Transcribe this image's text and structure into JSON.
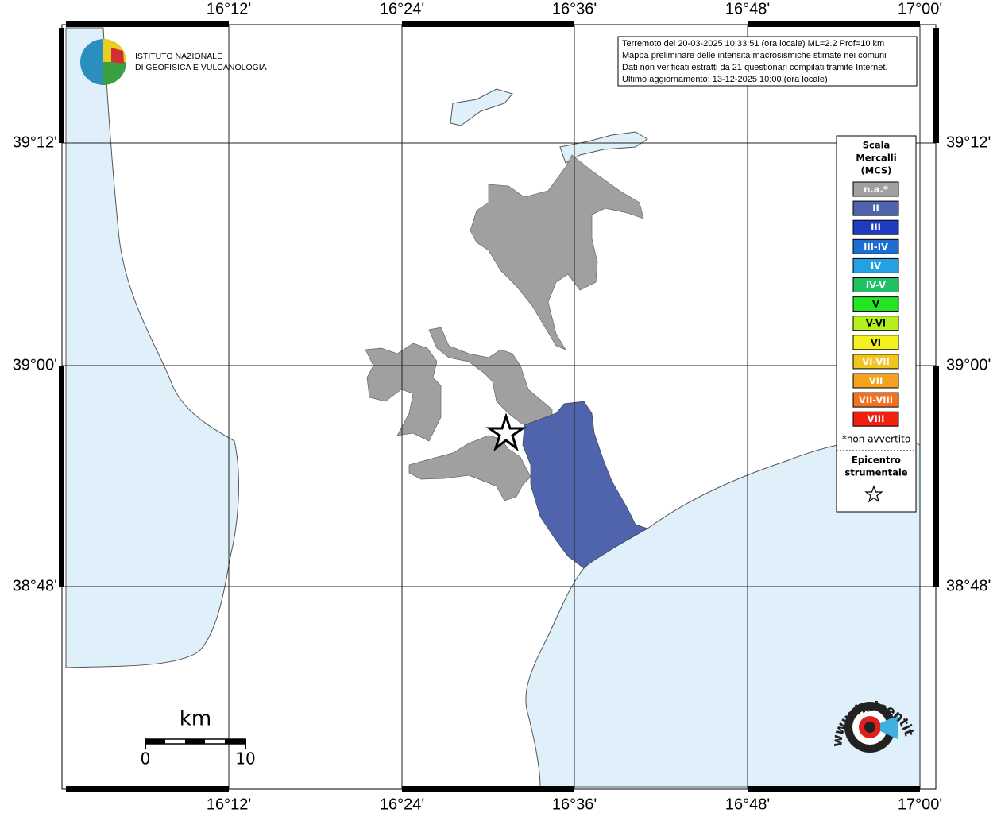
{
  "map": {
    "lon_labels": [
      "16°12'",
      "16°24'",
      "16°36'",
      "16°48'",
      "17°00'"
    ],
    "lat_labels": [
      "39°12'",
      "39°00'",
      "38°48'"
    ]
  },
  "info": {
    "lines": [
      "Terremoto del 20-03-2025 10:33:51 (ora locale) ML=2.2 Prof=10 km",
      "Mappa preliminare delle intensità macrosismiche stimate nei comuni",
      "Dati non verificati estratti da 21 questionari compilati tramite Internet.",
      "Ultimo aggiornamento: 13-12-2025 10:00 (ora locale)"
    ]
  },
  "logo": {
    "line1": "ISTITUTO NAZIONALE",
    "line2": "DI GEOFISICA E VULCANOLOGIA"
  },
  "legend": {
    "title": [
      "Scala",
      "Mercalli",
      "(MCS)"
    ],
    "items": [
      {
        "label": "n.a.*",
        "color": "#a0a0a0"
      },
      {
        "label": "II",
        "color": "#4f64ac"
      },
      {
        "label": "III",
        "color": "#1e3cc0"
      },
      {
        "label": "III-IV",
        "color": "#1e6ed2"
      },
      {
        "label": "IV",
        "color": "#22a2e2"
      },
      {
        "label": "IV-V",
        "color": "#20c064"
      },
      {
        "label": "V",
        "color": "#22e622"
      },
      {
        "label": "V-VI",
        "color": "#b4f020"
      },
      {
        "label": "VI",
        "color": "#f5f020"
      },
      {
        "label": "VI-VII",
        "color": "#f2c41e"
      },
      {
        "label": "VII",
        "color": "#f5a21e"
      },
      {
        "label": "VII-VIII",
        "color": "#f2721e"
      },
      {
        "label": "VIII",
        "color": "#f0200e"
      }
    ],
    "note": "*non avvertito",
    "epicenter": [
      "Epicentro",
      "strumentale"
    ]
  },
  "scale": {
    "title": "km",
    "labels": [
      "0",
      "10"
    ]
  },
  "site": "www.haisentitoilterremoto.it"
}
